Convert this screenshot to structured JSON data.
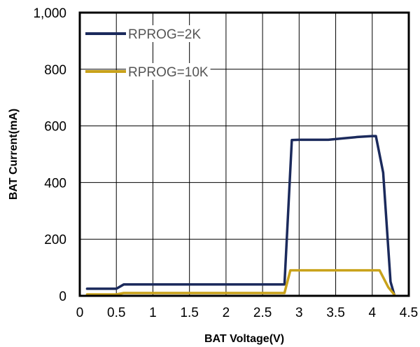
{
  "chart_data": {
    "type": "line",
    "xlabel": "BAT Voltage(V)",
    "ylabel": "BAT Current(mA)",
    "xlim": [
      0,
      4.5
    ],
    "ylim": [
      0,
      1000
    ],
    "x_ticks": [
      0,
      0.5,
      1,
      1.5,
      2,
      2.5,
      3,
      3.5,
      4,
      4.5
    ],
    "x_tick_labels": [
      "0",
      "0.5",
      "1",
      "1.5",
      "2",
      "2.5",
      "3",
      "3.5",
      "4",
      "4.5"
    ],
    "y_ticks": [
      0,
      200,
      400,
      600,
      800,
      1000
    ],
    "y_tick_labels": [
      "0",
      "200",
      "400",
      "600",
      "800",
      "1,000"
    ],
    "grid": true,
    "legend_position": "top-left",
    "series": [
      {
        "name": "RPROG=2K",
        "color": "#1b2a5c",
        "points": [
          [
            0.1,
            25
          ],
          [
            0.5,
            25
          ],
          [
            0.6,
            40
          ],
          [
            2.8,
            40
          ],
          [
            2.9,
            550
          ],
          [
            3.0,
            551
          ],
          [
            3.4,
            551
          ],
          [
            3.6,
            556
          ],
          [
            3.8,
            561
          ],
          [
            4.0,
            564
          ],
          [
            4.05,
            564
          ],
          [
            4.15,
            435
          ],
          [
            4.25,
            50
          ],
          [
            4.3,
            5
          ]
        ]
      },
      {
        "name": "RPROG=10K",
        "color": "#c9a21a",
        "points": [
          [
            0.1,
            5
          ],
          [
            0.5,
            5
          ],
          [
            0.6,
            10
          ],
          [
            2.8,
            10
          ],
          [
            2.88,
            90
          ],
          [
            4.1,
            90
          ],
          [
            4.22,
            30
          ],
          [
            4.3,
            5
          ]
        ]
      }
    ]
  }
}
